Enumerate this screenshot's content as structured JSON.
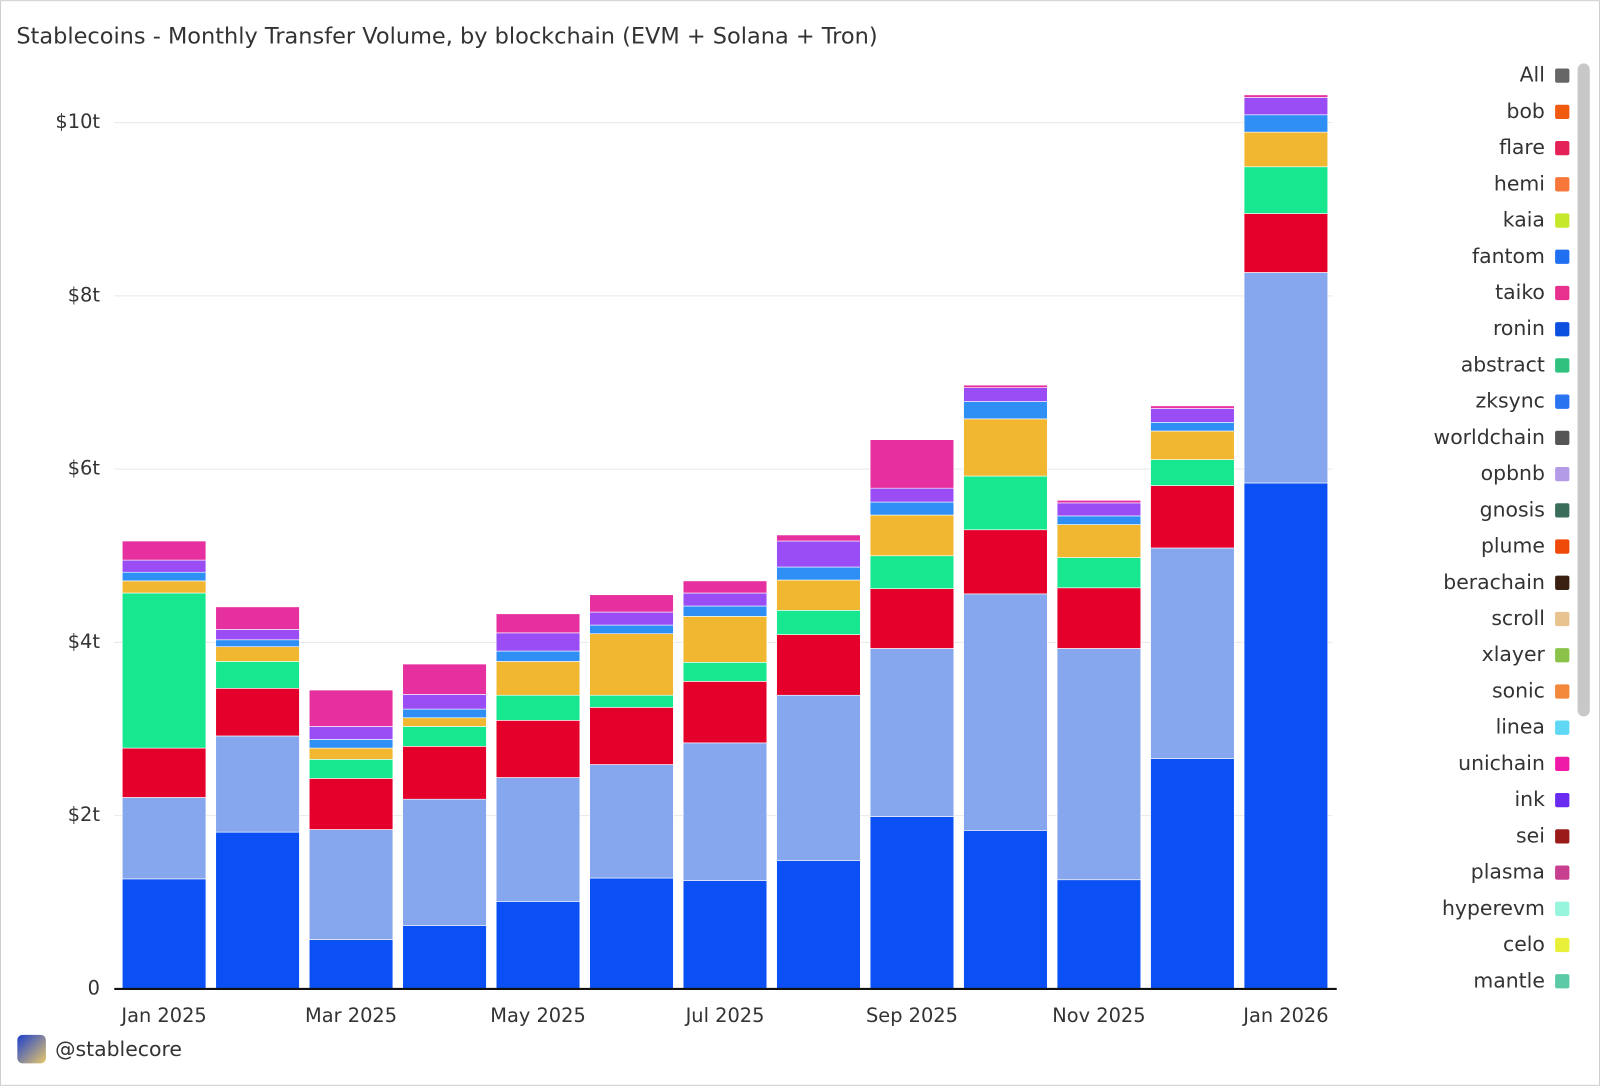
{
  "chart_data": {
    "type": "bar",
    "stacked": true,
    "title": "Stablecoins - Monthly Transfer Volume, by blockchain (EVM + Solana + Tron)",
    "categories": [
      "Jan 2025",
      null,
      "Mar 2025",
      null,
      "May 2025",
      null,
      "Jul 2025",
      null,
      "Sep 2025",
      null,
      "Nov 2025",
      null,
      "Jan 2026"
    ],
    "series": [
      {
        "color": "#0a50f5",
        "values": [
          1.27,
          1.81,
          0.57,
          0.73,
          1.01,
          1.28,
          1.25,
          1.48,
          1.99,
          1.83,
          1.26,
          2.66,
          5.84
        ]
      },
      {
        "color": "#86a7ee",
        "values": [
          0.94,
          1.11,
          1.27,
          1.46,
          1.43,
          1.31,
          1.59,
          1.91,
          1.94,
          2.73,
          2.67,
          2.43,
          2.43
        ]
      },
      {
        "color": "#e5002b",
        "values": [
          0.57,
          0.55,
          0.59,
          0.61,
          0.66,
          0.66,
          0.71,
          0.7,
          0.69,
          0.74,
          0.7,
          0.72,
          0.68
        ]
      },
      {
        "color": "#17e88f",
        "values": [
          1.79,
          0.31,
          0.22,
          0.23,
          0.29,
          0.14,
          0.22,
          0.28,
          0.38,
          0.62,
          0.35,
          0.3,
          0.54
        ]
      },
      {
        "color": "#f2b731",
        "values": [
          0.14,
          0.17,
          0.13,
          0.1,
          0.39,
          0.71,
          0.53,
          0.35,
          0.47,
          0.66,
          0.38,
          0.33,
          0.4
        ]
      },
      {
        "color": "#2f8ff5",
        "values": [
          0.1,
          0.08,
          0.1,
          0.1,
          0.12,
          0.1,
          0.12,
          0.15,
          0.15,
          0.2,
          0.1,
          0.1,
          0.2
        ]
      },
      {
        "color": "#9a4cf5",
        "values": [
          0.14,
          0.12,
          0.15,
          0.17,
          0.21,
          0.15,
          0.15,
          0.3,
          0.16,
          0.16,
          0.15,
          0.16,
          0.2
        ]
      },
      {
        "color": "#e6309f",
        "values": [
          0.22,
          0.26,
          0.42,
          0.35,
          0.22,
          0.2,
          0.14,
          0.07,
          0.56,
          0.03,
          0.03,
          0.03,
          0.03
        ]
      }
    ],
    "ylim": [
      0,
      10.4
    ],
    "yticks": [
      0,
      {
        "value": 2,
        "label": "$2t"
      },
      {
        "value": 4,
        "label": "$4t"
      },
      {
        "value": 6,
        "label": "$6t"
      },
      {
        "value": 8,
        "label": "$8t"
      },
      {
        "value": 10,
        "label": "$10t"
      }
    ],
    "grid": true,
    "legend": [
      {
        "label": "All",
        "color": "#666666"
      },
      {
        "label": "bob",
        "color": "#f05a0f"
      },
      {
        "label": "flare",
        "color": "#e5215a"
      },
      {
        "label": "hemi",
        "color": "#f7773a"
      },
      {
        "label": "kaia",
        "color": "#c6e82a"
      },
      {
        "label": "fantom",
        "color": "#1f6ff0"
      },
      {
        "label": "taiko",
        "color": "#e8308f"
      },
      {
        "label": "ronin",
        "color": "#0a4fe0"
      },
      {
        "label": "abstract",
        "color": "#2ec27e"
      },
      {
        "label": "zksync",
        "color": "#2a73f0"
      },
      {
        "label": "worldchain",
        "color": "#555555"
      },
      {
        "label": "opbnb",
        "color": "#b49be8"
      },
      {
        "label": "gnosis",
        "color": "#3b6e5a"
      },
      {
        "label": "plume",
        "color": "#f04a0a"
      },
      {
        "label": "berachain",
        "color": "#3a2010"
      },
      {
        "label": "scroll",
        "color": "#e8c28f"
      },
      {
        "label": "xlayer",
        "color": "#8bc34a"
      },
      {
        "label": "sonic",
        "color": "#f3873a"
      },
      {
        "label": "linea",
        "color": "#5fd8f5"
      },
      {
        "label": "unichain",
        "color": "#f01aa8"
      },
      {
        "label": "ink",
        "color": "#6a2bf0"
      },
      {
        "label": "sei",
        "color": "#9b1b1b"
      },
      {
        "label": "plasma",
        "color": "#c83f8f"
      },
      {
        "label": "hyperevm",
        "color": "#97f5dd"
      },
      {
        "label": "celo",
        "color": "#e8f03a"
      },
      {
        "label": "mantle",
        "color": "#5cc9a7"
      }
    ]
  },
  "footer": {
    "handle": "@stablecore"
  }
}
